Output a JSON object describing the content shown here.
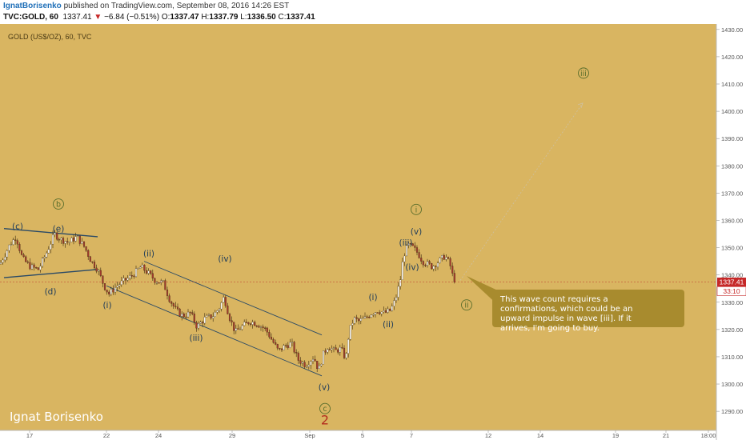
{
  "header": {
    "author": "IgnatBorisenko",
    "published": " published on TradingView.com, September 08, 2016 14:26 EST",
    "symbol": "TVC:GOLD, 60",
    "last": "1337.41",
    "change_arrow": "▼",
    "change": "−6.84 (−0.51%)",
    "open_label": "O:",
    "open": "1337.47",
    "high_label": "H:",
    "high": "1337.79",
    "low_label": "L:",
    "low": "1336.50",
    "close_label": "C:",
    "close": "1337.41"
  },
  "chart_title": "GOLD (US$/OZ), 60, TVC",
  "watermark": "Ignat Borisenko",
  "price_tag": "1337.41",
  "time_tag": "33:10",
  "note": "This wave count requires a confirmations, which could be an upward impulse in wave [iii]. If it arrives, I'm going to buy.",
  "colors": {
    "background": "#d9b561",
    "note_box": "#a88b2e",
    "candle_up": "#ffffff",
    "candle_down": "#a33a2e",
    "trendline": "#2a4a66",
    "wave_label": "#1c3a5a",
    "circle_label": "#5a6e2c",
    "wave_2": "#b32d1e",
    "price_tag": "#c62828"
  },
  "chart_data": {
    "type": "candlestick",
    "title": "GOLD (US$/OZ), 60, TVC",
    "ylim": [
      1283,
      1432
    ],
    "xlim": [
      0,
      895
    ],
    "y_ticks": [
      1290,
      1300,
      1310,
      1320,
      1330,
      1340,
      1350,
      1360,
      1370,
      1380,
      1390,
      1400,
      1410,
      1420,
      1430
    ],
    "x_ticks": [
      {
        "label": "17",
        "x": 37
      },
      {
        "label": "22",
        "x": 133
      },
      {
        "label": "24",
        "x": 198
      },
      {
        "label": "29",
        "x": 290
      },
      {
        "label": "Sep",
        "x": 387
      },
      {
        "label": "5",
        "x": 453
      },
      {
        "label": "7",
        "x": 514
      },
      {
        "label": "12",
        "x": 610
      },
      {
        "label": "14",
        "x": 675
      },
      {
        "label": "19",
        "x": 769
      },
      {
        "label": "21",
        "x": 832
      },
      {
        "label": "18:00",
        "x": 885
      }
    ],
    "price_path": [
      [
        0,
        1344
      ],
      [
        12,
        1351
      ],
      [
        20,
        1354
      ],
      [
        28,
        1346
      ],
      [
        38,
        1343
      ],
      [
        48,
        1342
      ],
      [
        58,
        1348
      ],
      [
        68,
        1355
      ],
      [
        76,
        1353
      ],
      [
        86,
        1352
      ],
      [
        96,
        1354
      ],
      [
        106,
        1350
      ],
      [
        114,
        1345
      ],
      [
        122,
        1342
      ],
      [
        130,
        1336
      ],
      [
        136,
        1333
      ],
      [
        146,
        1336
      ],
      [
        156,
        1338
      ],
      [
        166,
        1340
      ],
      [
        176,
        1343
      ],
      [
        184,
        1341
      ],
      [
        194,
        1338
      ],
      [
        204,
        1337
      ],
      [
        212,
        1331
      ],
      [
        220,
        1327
      ],
      [
        228,
        1325
      ],
      [
        238,
        1326
      ],
      [
        246,
        1321
      ],
      [
        256,
        1324
      ],
      [
        266,
        1325
      ],
      [
        274,
        1328
      ],
      [
        280,
        1332
      ],
      [
        286,
        1325
      ],
      [
        294,
        1319
      ],
      [
        302,
        1321
      ],
      [
        312,
        1323
      ],
      [
        322,
        1322
      ],
      [
        332,
        1320
      ],
      [
        340,
        1316
      ],
      [
        348,
        1312
      ],
      [
        356,
        1314
      ],
      [
        364,
        1315
      ],
      [
        372,
        1309
      ],
      [
        382,
        1307
      ],
      [
        392,
        1310
      ],
      [
        398,
        1305
      ],
      [
        404,
        1311
      ],
      [
        410,
        1314
      ],
      [
        418,
        1312
      ],
      [
        426,
        1313
      ],
      [
        432,
        1309
      ],
      [
        436,
        1319
      ],
      [
        442,
        1324
      ],
      [
        448,
        1323
      ],
      [
        456,
        1324
      ],
      [
        464,
        1326
      ],
      [
        472,
        1327
      ],
      [
        480,
        1326
      ],
      [
        488,
        1327
      ],
      [
        494,
        1331
      ],
      [
        500,
        1338
      ],
      [
        504,
        1347
      ],
      [
        510,
        1351
      ],
      [
        516,
        1350
      ],
      [
        522,
        1348
      ],
      [
        528,
        1345
      ],
      [
        534,
        1344
      ],
      [
        540,
        1343
      ],
      [
        548,
        1345
      ],
      [
        556,
        1347
      ],
      [
        562,
        1344
      ],
      [
        566,
        1339
      ],
      [
        570,
        1337.4
      ]
    ],
    "upper_channel": [
      [
        180,
        1345
      ],
      [
        402,
        1318
      ]
    ],
    "lower_channel": [
      [
        133,
        1336
      ],
      [
        402,
        1303
      ]
    ],
    "triangle_upper": [
      [
        5,
        1357
      ],
      [
        122,
        1354
      ]
    ],
    "triangle_lower": [
      [
        5,
        1339
      ],
      [
        122,
        1342
      ]
    ],
    "projection": [
      [
        575,
        1338
      ],
      [
        728,
        1403
      ]
    ],
    "wave_labels": [
      {
        "text": "(c)",
        "x": 22,
        "y": 1358,
        "style": "plain"
      },
      {
        "text": "b",
        "x": 73,
        "y": 1366,
        "style": "circle"
      },
      {
        "text": "(e)",
        "x": 73,
        "y": 1357,
        "style": "plain"
      },
      {
        "text": "(d)",
        "x": 63,
        "y": 1334,
        "style": "plain"
      },
      {
        "text": "(i)",
        "x": 134,
        "y": 1329,
        "style": "plain"
      },
      {
        "text": "(ii)",
        "x": 186,
        "y": 1348,
        "style": "plain"
      },
      {
        "text": "(iii)",
        "x": 245,
        "y": 1317,
        "style": "plain"
      },
      {
        "text": "(iv)",
        "x": 281,
        "y": 1346,
        "style": "plain"
      },
      {
        "text": "(v)",
        "x": 405,
        "y": 1299,
        "style": "plain"
      },
      {
        "text": "c",
        "x": 406,
        "y": 1291,
        "style": "circle"
      },
      {
        "text": "2",
        "x": 406,
        "y": 1287,
        "style": "big"
      },
      {
        "text": "(i)",
        "x": 466,
        "y": 1332,
        "style": "plain"
      },
      {
        "text": "(ii)",
        "x": 485,
        "y": 1322,
        "style": "plain"
      },
      {
        "text": "(iii)",
        "x": 507,
        "y": 1352,
        "style": "plain"
      },
      {
        "text": "(iv)",
        "x": 515,
        "y": 1343,
        "style": "plain"
      },
      {
        "text": "i",
        "x": 520,
        "y": 1364,
        "style": "circle"
      },
      {
        "text": "(v)",
        "x": 520,
        "y": 1356,
        "style": "plain"
      },
      {
        "text": "ii",
        "x": 583,
        "y": 1329,
        "style": "circle"
      },
      {
        "text": "iii",
        "x": 729,
        "y": 1414,
        "style": "circle"
      }
    ]
  }
}
